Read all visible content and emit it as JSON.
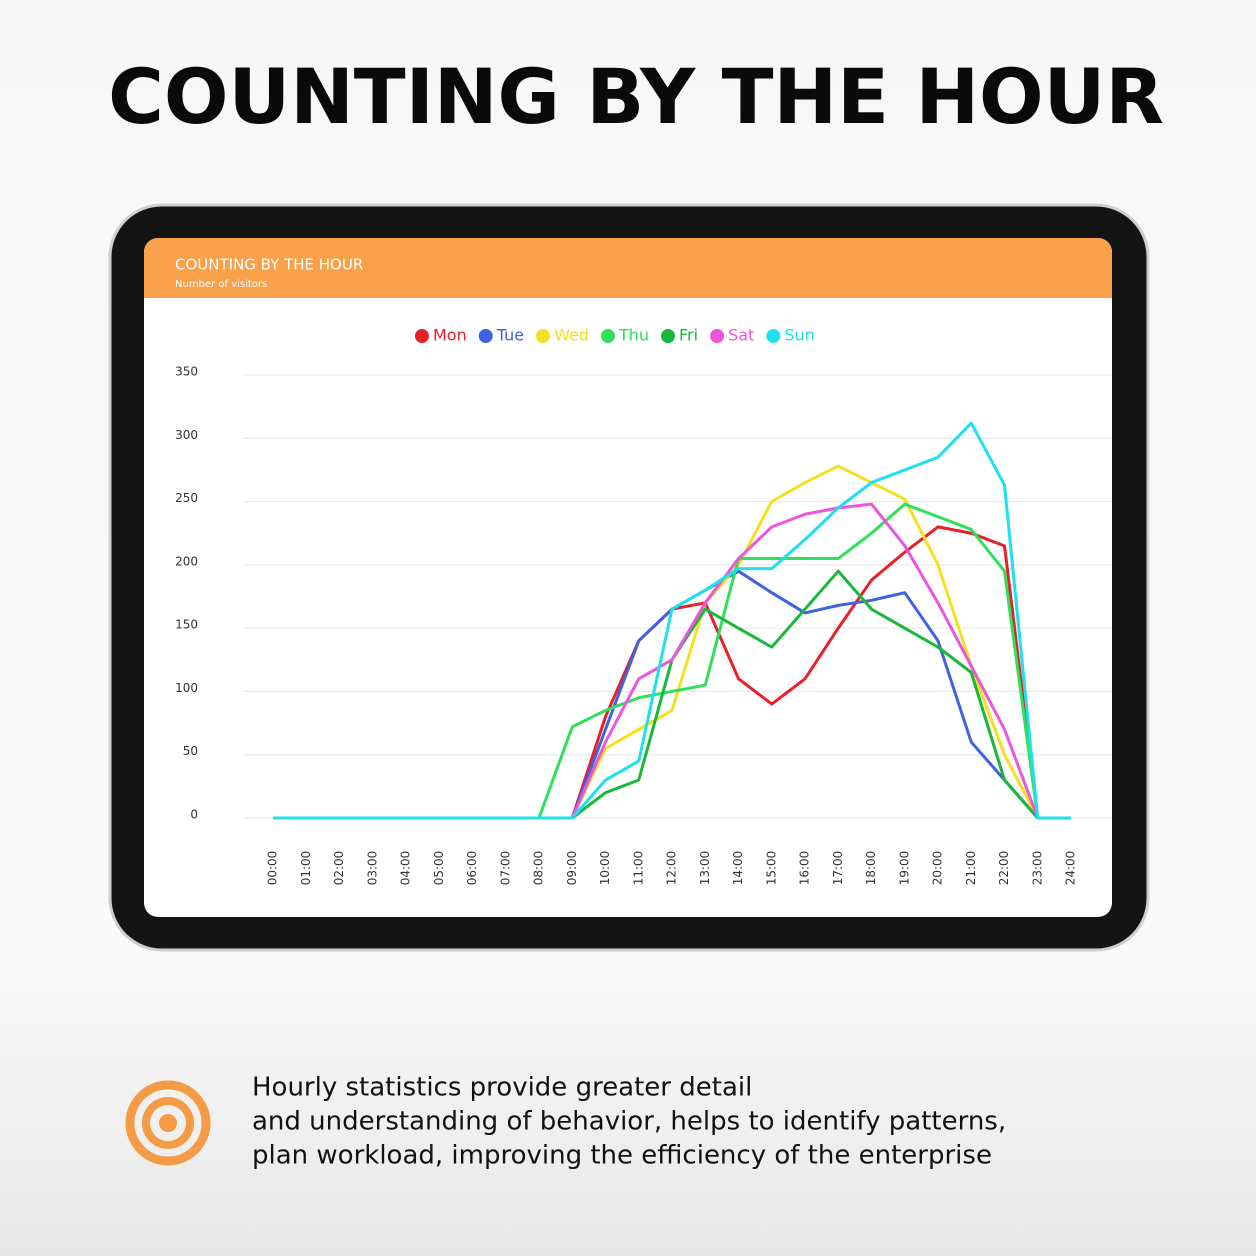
{
  "headline": "COUNTING BY THE HOUR",
  "chart_data": {
    "type": "line",
    "title": "COUNTING BY THE HOUR",
    "subtitle": "Number of visitors",
    "categories": [
      "00:00",
      "01:00",
      "02:00",
      "03:00",
      "04:00",
      "05:00",
      "06:00",
      "07:00",
      "08:00",
      "09:00",
      "10:00",
      "11:00",
      "12:00",
      "13:00",
      "14:00",
      "15:00",
      "16:00",
      "17:00",
      "18:00",
      "19:00",
      "20:00",
      "21:00",
      "22:00",
      "23:00",
      "24:00"
    ],
    "ylim": [
      0,
      350
    ],
    "yticks": [
      0,
      50,
      100,
      150,
      200,
      250,
      300,
      350
    ],
    "grid": true,
    "series": [
      {
        "name": "Mon",
        "color": "#e8202a",
        "values": [
          0,
          0,
          0,
          0,
          0,
          0,
          0,
          0,
          0,
          0,
          80,
          140,
          165,
          170,
          110,
          90,
          110,
          150,
          188,
          210,
          230,
          225,
          215,
          0,
          0
        ]
      },
      {
        "name": "Tue",
        "color": "#3f62e0",
        "values": [
          0,
          0,
          0,
          0,
          0,
          0,
          0,
          0,
          0,
          0,
          70,
          140,
          165,
          180,
          195,
          178,
          162,
          168,
          172,
          178,
          140,
          60,
          30,
          0,
          0
        ]
      },
      {
        "name": "Wed",
        "color": "#f5e020",
        "values": [
          0,
          0,
          0,
          0,
          0,
          0,
          0,
          0,
          0,
          0,
          55,
          70,
          85,
          170,
          200,
          250,
          265,
          278,
          265,
          252,
          200,
          120,
          50,
          0,
          0
        ]
      },
      {
        "name": "Thu",
        "color": "#2fe05a",
        "values": [
          0,
          0,
          0,
          0,
          0,
          0,
          0,
          0,
          0,
          72,
          85,
          95,
          100,
          105,
          205,
          205,
          205,
          205,
          225,
          248,
          238,
          228,
          195,
          0,
          0
        ]
      },
      {
        "name": "Fri",
        "color": "#18b83a",
        "values": [
          0,
          0,
          0,
          0,
          0,
          0,
          0,
          0,
          0,
          0,
          20,
          30,
          125,
          165,
          150,
          135,
          165,
          195,
          165,
          150,
          135,
          115,
          30,
          0,
          0
        ]
      },
      {
        "name": "Sat",
        "color": "#ee55dd",
        "values": [
          0,
          0,
          0,
          0,
          0,
          0,
          0,
          0,
          0,
          0,
          60,
          110,
          125,
          170,
          205,
          230,
          240,
          245,
          248,
          215,
          170,
          120,
          70,
          0,
          0
        ]
      },
      {
        "name": "Sun",
        "color": "#1ee0ee",
        "values": [
          0,
          0,
          0,
          0,
          0,
          0,
          0,
          0,
          0,
          0,
          30,
          45,
          165,
          180,
          197,
          197,
          220,
          245,
          265,
          275,
          285,
          312,
          263,
          0,
          0
        ]
      }
    ]
  },
  "caption": [
    "Hourly statistics provide greater detail",
    "and understanding of behavior, helps to identify patterns,",
    "plan workload, improving the efficiency of the enterprise"
  ]
}
